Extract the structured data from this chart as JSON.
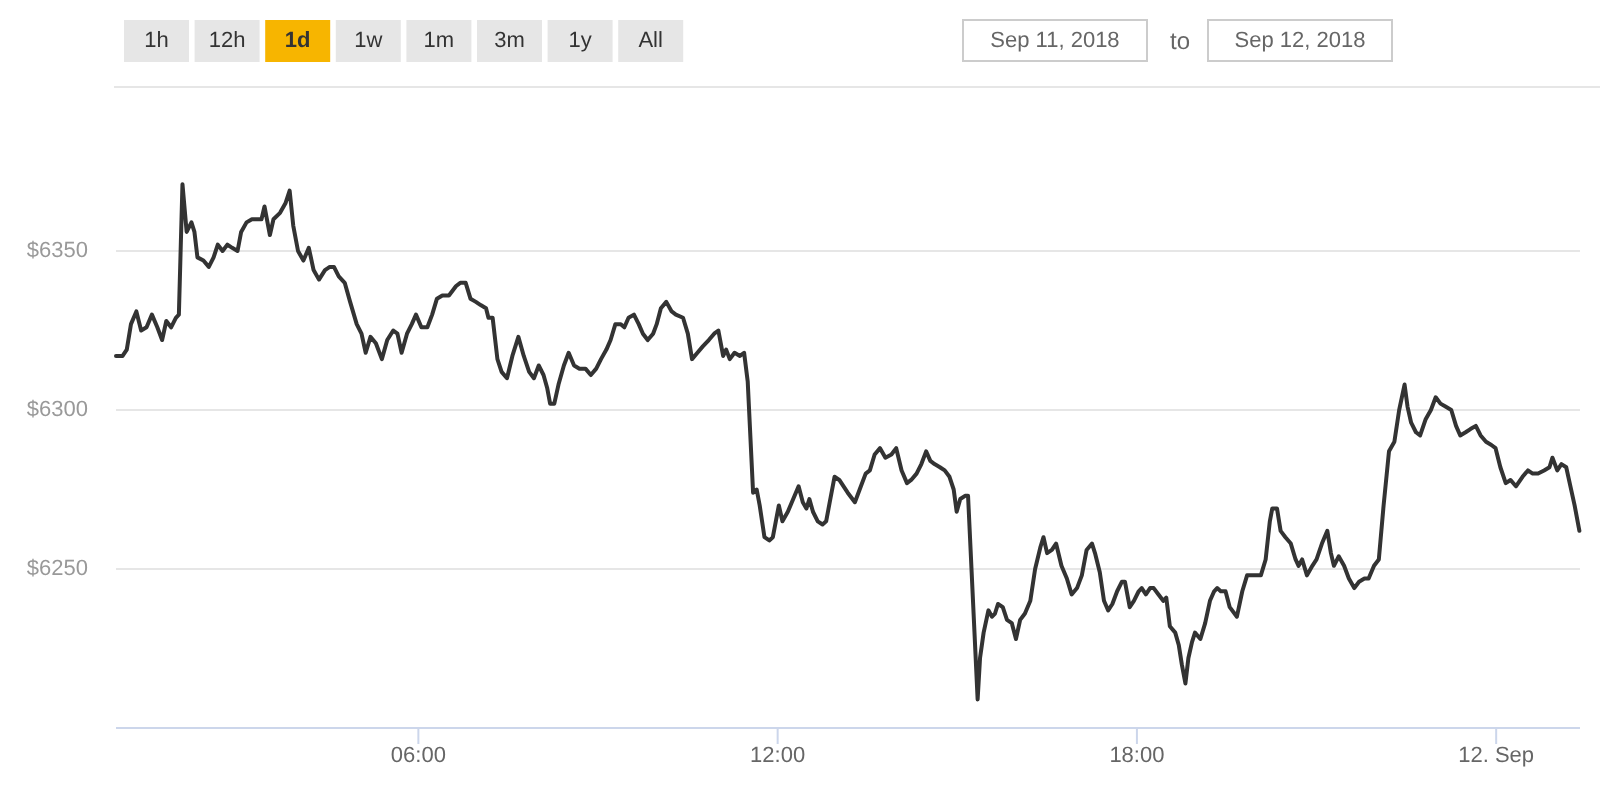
{
  "chart_data": {
    "type": "line",
    "annotations": [
      "1h",
      "12h",
      "1d",
      "1w",
      "1m",
      "3m",
      "1y",
      "All",
      "Sep 11, 2018",
      "to",
      "Sep 12, 2018"
    ],
    "xlim": [
      0.95,
      25.4
    ],
    "xticks": [
      {
        "value": 6,
        "label": "06:00"
      },
      {
        "value": 12,
        "label": "12:00"
      },
      {
        "value": 18,
        "label": "18:00"
      },
      {
        "value": 24,
        "label": "12. Sep"
      }
    ],
    "ylim": [
      6200,
      6400
    ],
    "yticks": [
      {
        "value": 6250,
        "label": "$6250"
      },
      {
        "value": 6300,
        "label": "$6300"
      },
      {
        "value": 6350,
        "label": "$6350"
      }
    ],
    "grid": "y",
    "x": [
      0.95,
      1.06,
      1.13,
      1.2,
      1.29,
      1.37,
      1.46,
      1.55,
      1.64,
      1.72,
      1.79,
      1.87,
      1.95,
      2.0,
      2.06,
      2.13,
      2.21,
      2.26,
      2.31,
      2.41,
      2.5,
      2.58,
      2.65,
      2.73,
      2.81,
      2.89,
      2.98,
      3.04,
      3.13,
      3.22,
      3.3,
      3.38,
      3.43,
      3.52,
      3.58,
      3.69,
      3.78,
      3.85,
      3.91,
      3.99,
      4.08,
      4.17,
      4.25,
      4.34,
      4.44,
      4.52,
      4.59,
      4.67,
      4.77,
      4.86,
      4.97,
      5.05,
      5.12,
      5.2,
      5.29,
      5.39,
      5.48,
      5.58,
      5.65,
      5.72,
      5.81,
      5.89,
      5.96,
      6.05,
      6.15,
      6.23,
      6.31,
      6.4,
      6.51,
      6.63,
      6.7,
      6.79,
      6.87,
      6.96,
      7.04,
      7.13,
      7.17,
      7.24,
      7.32,
      7.39,
      7.48,
      7.57,
      7.67,
      7.76,
      7.85,
      7.93,
      8.01,
      8.09,
      8.15,
      8.2,
      8.27,
      8.34,
      8.43,
      8.51,
      8.6,
      8.69,
      8.79,
      8.88,
      8.97,
      9.05,
      9.14,
      9.21,
      9.29,
      9.38,
      9.44,
      9.51,
      9.6,
      9.68,
      9.75,
      9.83,
      9.92,
      9.98,
      10.05,
      10.14,
      10.23,
      10.3,
      10.42,
      10.5,
      10.57,
      10.66,
      10.75,
      10.85,
      10.94,
      11.01,
      11.09,
      11.14,
      11.2,
      11.28,
      11.37,
      11.44,
      11.5,
      11.59,
      11.65,
      11.7,
      11.78,
      11.86,
      11.92,
      11.99,
      12.02,
      12.08,
      12.17,
      12.26,
      12.35,
      12.42,
      12.48,
      12.53,
      12.59,
      12.67,
      12.75,
      12.81,
      12.87,
      12.95,
      13.03,
      13.17,
      13.29,
      13.37,
      13.47,
      13.54,
      13.62,
      13.71,
      13.8,
      13.9,
      13.98,
      14.07,
      14.16,
      14.23,
      14.32,
      14.4,
      14.48,
      14.55,
      14.62,
      14.71,
      14.79,
      14.87,
      14.94,
      14.99,
      15.05,
      15.13,
      15.18,
      15.34,
      15.38,
      15.44,
      15.52,
      15.58,
      15.63,
      15.68,
      15.76,
      15.83,
      15.91,
      15.98,
      16.05,
      16.13,
      16.22,
      16.3,
      16.39,
      16.44,
      16.5,
      16.58,
      16.65,
      16.74,
      16.83,
      16.91,
      17.0,
      17.08,
      17.16,
      17.25,
      17.3,
      17.38,
      17.45,
      17.52,
      17.59,
      17.67,
      17.75,
      17.8,
      17.88,
      17.95,
      18.03,
      18.08,
      18.15,
      18.22,
      18.28,
      18.36,
      18.44,
      18.49,
      18.55,
      18.64,
      18.7,
      18.75,
      18.81,
      18.86,
      18.92,
      18.97,
      19.06,
      19.14,
      19.22,
      19.29,
      19.34,
      19.4,
      19.48,
      19.55,
      19.67,
      19.76,
      19.84,
      19.98,
      20.07,
      20.15,
      20.22,
      20.26,
      20.34,
      20.4,
      20.48,
      20.57,
      20.65,
      20.7,
      20.76,
      20.84,
      20.93,
      21.0,
      21.09,
      21.18,
      21.24,
      21.29,
      21.37,
      21.46,
      21.54,
      21.63,
      21.71,
      21.8,
      21.87,
      21.96,
      22.04,
      22.12,
      22.21,
      22.3,
      22.38,
      22.47,
      22.52,
      22.58,
      22.66,
      22.73,
      22.82,
      22.91,
      22.99,
      23.07,
      23.16,
      23.25,
      23.33,
      23.4,
      23.49,
      23.57,
      23.66,
      23.74,
      23.83,
      23.92,
      23.99,
      24.07,
      24.16,
      24.24,
      24.33,
      24.44,
      24.53,
      24.61,
      24.7,
      24.8,
      24.89,
      24.94,
      25.02,
      25.09,
      25.17,
      25.24,
      25.31,
      25.39
    ],
    "series": [
      {
        "color": "#333333",
        "values": [
          6317,
          6317,
          6319,
          6327,
          6331,
          6325,
          6326,
          6330,
          6326,
          6322,
          6328,
          6326,
          6329,
          6330,
          6371,
          6356,
          6359,
          6356,
          6348,
          6347,
          6345,
          6348,
          6352,
          6350,
          6352,
          6351,
          6350,
          6356,
          6359,
          6360,
          6360,
          6360,
          6364,
          6355,
          6360,
          6362,
          6365,
          6369,
          6358,
          6350,
          6347,
          6351,
          6344,
          6341,
          6344,
          6345,
          6345,
          6342,
          6340,
          6334,
          6327,
          6324,
          6318,
          6323,
          6321,
          6316,
          6322,
          6325,
          6324,
          6318,
          6324,
          6327,
          6330,
          6326,
          6326,
          6330,
          6335,
          6336,
          6336,
          6339,
          6340,
          6340,
          6335,
          6334,
          6333,
          6332,
          6329,
          6329,
          6316,
          6312,
          6310,
          6317,
          6323,
          6317,
          6312,
          6310,
          6314,
          6311,
          6307,
          6302,
          6302,
          6308,
          6314,
          6318,
          6314,
          6313,
          6313,
          6311,
          6313,
          6316,
          6319,
          6322,
          6327,
          6327,
          6326,
          6329,
          6330,
          6327,
          6324,
          6322,
          6324,
          6327,
          6332,
          6334,
          6331,
          6330,
          6329,
          6324,
          6316,
          6318,
          6320,
          6322,
          6324,
          6325,
          6317,
          6319,
          6316,
          6318,
          6317,
          6318,
          6309,
          6274,
          6275,
          6270,
          6260,
          6259,
          6260,
          6267,
          6270,
          6265,
          6268,
          6272,
          6276,
          6271,
          6269,
          6272,
          6268,
          6265,
          6264,
          6265,
          6271,
          6279,
          6278,
          6274,
          6271,
          6275,
          6280,
          6281,
          6286,
          6288,
          6285,
          6286,
          6288,
          6281,
          6277,
          6278,
          6280,
          6283,
          6287,
          6284,
          6283,
          6282,
          6281,
          6279,
          6275,
          6268,
          6272,
          6273,
          6273,
          6209,
          6222,
          6230,
          6237,
          6235,
          6236,
          6239,
          6238,
          6234,
          6233,
          6228,
          6234,
          6236,
          6240,
          6250,
          6257,
          6260,
          6255,
          6256,
          6258,
          6251,
          6247,
          6242,
          6244,
          6248,
          6256,
          6258,
          6255,
          6249,
          6240,
          6237,
          6239,
          6243,
          6246,
          6246,
          6238,
          6240,
          6243,
          6244,
          6242,
          6244,
          6244,
          6242,
          6240,
          6241,
          6232,
          6230,
          6226,
          6220,
          6214,
          6222,
          6227,
          6230,
          6228,
          6233,
          6240,
          6243,
          6244,
          6243,
          6243,
          6238,
          6235,
          6243,
          6248,
          6248,
          6248,
          6253,
          6265,
          6269,
          6269,
          6262,
          6260,
          6258,
          6253,
          6251,
          6253,
          6248,
          6251,
          6253,
          6258,
          6262,
          6255,
          6251,
          6254,
          6251,
          6247,
          6244,
          6246,
          6247,
          6247,
          6251,
          6253,
          6270,
          6287,
          6290,
          6300,
          6308,
          6301,
          6296,
          6293,
          6292,
          6297,
          6300,
          6304,
          6302,
          6301,
          6300,
          6295,
          6292,
          6293,
          6294,
          6295,
          6292,
          6290,
          6289,
          6288,
          6282,
          6277,
          6278,
          6276,
          6279,
          6281,
          6280,
          6280,
          6281,
          6282,
          6285,
          6281,
          6283,
          6282,
          6276,
          6270,
          6262
        ]
      }
    ]
  }
}
